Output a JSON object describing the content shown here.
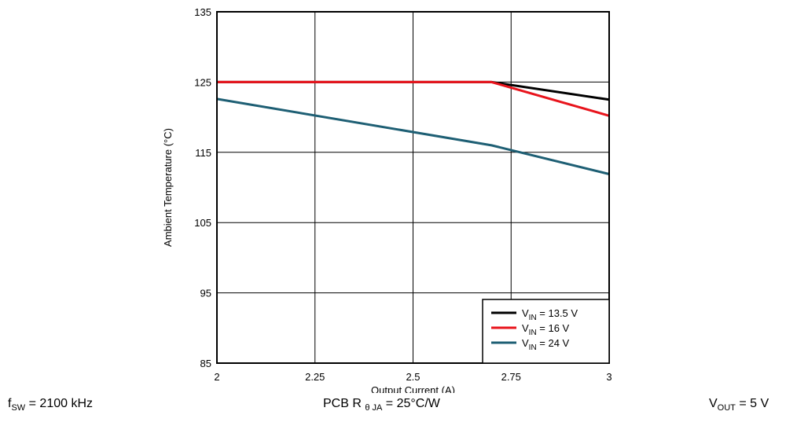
{
  "chart_data": {
    "type": "line",
    "xlabel": "Output Current (A)",
    "ylabel": "Ambient Temperature (°C)",
    "xlim": [
      2,
      3
    ],
    "ylim": [
      85,
      135
    ],
    "x_ticks": [
      "2",
      "2.25",
      "2.5",
      "2.75",
      "3"
    ],
    "y_ticks": [
      "85",
      "95",
      "105",
      "115",
      "125",
      "135"
    ],
    "x_tick_values": [
      2,
      2.25,
      2.5,
      2.75,
      3
    ],
    "y_tick_values": [
      85,
      95,
      105,
      115,
      125,
      135
    ],
    "grid": true,
    "legend_position": "bottom-right",
    "series": [
      {
        "name": "V_IN = 13.5 V",
        "label_main": "V",
        "label_sub": "IN",
        "label_rest": " = 13.5 V",
        "color": "#000000",
        "x": [
          2,
          2.7,
          3
        ],
        "y": [
          125,
          125,
          122.5
        ]
      },
      {
        "name": "V_IN = 16 V",
        "label_main": "V",
        "label_sub": "IN",
        "label_rest": " = 16 V",
        "color": "#e8141c",
        "x": [
          2,
          2.7,
          3
        ],
        "y": [
          125,
          125,
          120.2
        ]
      },
      {
        "name": "V_IN = 24 V",
        "label_main": "V",
        "label_sub": "IN",
        "label_rest": " = 24 V",
        "color": "#1e5f74",
        "x": [
          2,
          2.7,
          3
        ],
        "y": [
          122.6,
          116,
          111.9
        ]
      }
    ]
  },
  "footer": {
    "left": {
      "main": "f",
      "sub": "SW",
      "rest": " = 2100 kHz"
    },
    "center": {
      "main": "PCB R ",
      "sub": "θ JA",
      "rest": " = 25°C/W"
    },
    "right": {
      "main": "V",
      "sub": "OUT",
      "rest": " = 5 V"
    }
  }
}
